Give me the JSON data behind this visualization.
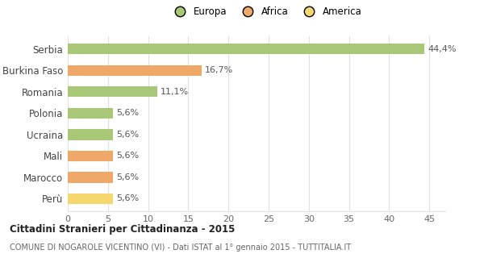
{
  "categories": [
    "Perù",
    "Marocco",
    "Mali",
    "Ucraina",
    "Polonia",
    "Romania",
    "Burkina Faso",
    "Serbia"
  ],
  "values": [
    5.6,
    5.6,
    5.6,
    5.6,
    5.6,
    11.1,
    16.7,
    44.4
  ],
  "labels": [
    "5,6%",
    "5,6%",
    "5,6%",
    "5,6%",
    "5,6%",
    "11,1%",
    "16,7%",
    "44,4%"
  ],
  "colors": [
    "#f5d76e",
    "#f0a868",
    "#f0a868",
    "#a8c878",
    "#a8c878",
    "#a8c878",
    "#f0a868",
    "#a8c878"
  ],
  "legend_labels": [
    "Europa",
    "Africa",
    "America"
  ],
  "legend_colors": [
    "#a8c878",
    "#f0a868",
    "#f5d76e"
  ],
  "title": "Cittadini Stranieri per Cittadinanza - 2015",
  "subtitle": "COMUNE DI NOGAROLE VICENTINO (VI) - Dati ISTAT al 1° gennaio 2015 - TUTTITALIA.IT",
  "xlim": [
    0,
    47
  ],
  "xticks": [
    0,
    5,
    10,
    15,
    20,
    25,
    30,
    35,
    40,
    45
  ],
  "bg_color": "#ffffff",
  "grid_color": "#e0e0e0",
  "bar_height": 0.5,
  "label_fontsize": 8,
  "ytick_fontsize": 8.5,
  "xtick_fontsize": 8
}
